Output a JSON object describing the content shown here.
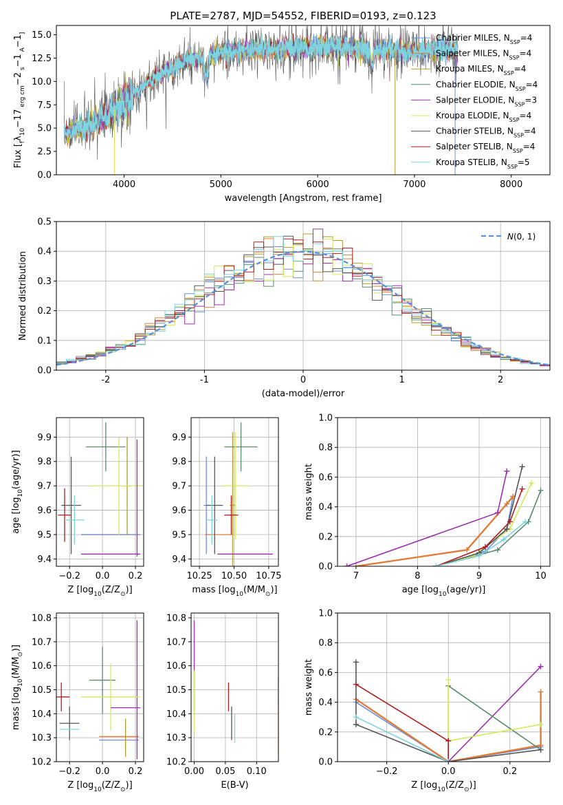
{
  "figure": {
    "title": "PLATE=2787, MJD=54552, FIBERID=0193, z=0.123"
  },
  "series": [
    {
      "name": "Chabrier MILES",
      "nssp": "4",
      "color": "#6a8fd8"
    },
    {
      "name": "Salpeter MILES",
      "nssp": "4",
      "color": "#e07b39"
    },
    {
      "name": "Kroupa MILES",
      "nssp": "4",
      "color": "#b59a2b"
    },
    {
      "name": "Chabrier ELODIE",
      "nssp": "4",
      "color": "#5a8a68"
    },
    {
      "name": "Salpeter ELODIE",
      "nssp": "3",
      "color": "#9b2fae"
    },
    {
      "name": "Kroupa ELODIE",
      "nssp": "4",
      "color": "#d4e85a"
    },
    {
      "name": "Chabrier STELIB",
      "nssp": "4",
      "color": "#555555"
    },
    {
      "name": "Salpeter STELIB",
      "nssp": "4",
      "color": "#b01c1c"
    },
    {
      "name": "Kroupa STELIB",
      "nssp": "5",
      "color": "#7ed3de"
    }
  ],
  "chart_data": [
    {
      "id": "spectrum",
      "type": "line",
      "xlabel": "wavelength [Angstrom, rest frame]",
      "ylabel_parts": [
        "Flux [",
        "f",
        "λ",
        "10",
        "−17",
        " erg cm",
        "−2",
        " s",
        "−1",
        " A",
        "−1",
        "]"
      ],
      "xlim": [
        3300,
        8400
      ],
      "ylim": [
        0,
        16
      ],
      "xticks": [
        4000,
        5000,
        6000,
        7000,
        8000
      ],
      "yticks": [
        0.0,
        2.5,
        5.0,
        7.5,
        10.0,
        12.5,
        15.0
      ],
      "continuum": {
        "x": [
          3400,
          3600,
          3800,
          4000,
          4200,
          4400,
          4600,
          4800,
          5000,
          5200,
          5400,
          5600,
          5800,
          6000,
          6200,
          6400,
          6600,
          6800,
          7000,
          7200,
          7400
        ],
        "y": [
          4.6,
          5.0,
          6.2,
          7.8,
          9.5,
          11.0,
          12.0,
          12.6,
          13.0,
          13.3,
          13.4,
          13.5,
          13.6,
          13.7,
          13.6,
          13.5,
          13.4,
          13.3,
          13.2,
          13.3,
          13.4
        ]
      },
      "legend_position": "upper right"
    },
    {
      "id": "residuals",
      "type": "line",
      "xlabel": "(data-model)/error",
      "ylabel": "Normed distribution",
      "xlim": [
        -2.5,
        2.5
      ],
      "ylim": [
        0,
        0.5
      ],
      "xticks": [
        -2,
        -1,
        0,
        1,
        2
      ],
      "yticks": [
        0.0,
        0.1,
        0.2,
        0.3,
        0.4,
        0.5
      ],
      "bin_edges_start": -2.5,
      "bin_width": 0.1,
      "nbins": 50,
      "reference_label": "(0, 1)",
      "reference_color": "#5b8fd6",
      "legend_position": "upper right"
    },
    {
      "id": "age-vs-Z",
      "type": "scatter",
      "xlabel_parts": [
        "Z [log",
        "10",
        "(Z/Z",
        "⊙",
        ")]"
      ],
      "ylabel_parts": [
        "age  [log",
        "10",
        "(age/yr)]"
      ],
      "xlim": [
        -0.28,
        0.25
      ],
      "ylim": [
        9.37,
        9.98
      ],
      "xticks": [
        -0.2,
        0.0,
        0.2
      ],
      "xtick_labels": [
        "−0.2",
        "0.0",
        "0.2"
      ],
      "yticks": [
        9.4,
        9.5,
        9.6,
        9.7,
        9.8,
        9.9
      ],
      "points": [
        {
          "x": 0.05,
          "y": 9.5,
          "xerr": 0.18,
          "yerr": 0.0,
          "s": 1
        },
        {
          "x": 0.05,
          "y": 9.5,
          "xerr": 0.18,
          "yerr": 0.0,
          "s": 0
        },
        {
          "x": 0.15,
          "y": 9.7,
          "xerr": 0.02,
          "yerr": 0.2,
          "s": 2
        },
        {
          "x": 0.02,
          "y": 9.86,
          "xerr": 0.12,
          "yerr": 0.1,
          "s": 3
        },
        {
          "x": 0.05,
          "y": 9.42,
          "xerr": 0.18,
          "yerr": 0.0,
          "s": 4
        },
        {
          "x": 0.1,
          "y": 9.7,
          "xerr": 0.18,
          "yerr": 0.2,
          "s": 5
        },
        {
          "x": -0.19,
          "y": 9.62,
          "xerr": 0.06,
          "yerr": 0.2,
          "s": 6
        },
        {
          "x": -0.23,
          "y": 9.58,
          "xerr": 0.04,
          "yerr": 0.11,
          "s": 7
        },
        {
          "x": -0.17,
          "y": 9.56,
          "xerr": 0.06,
          "yerr": 0.1,
          "s": 8
        },
        {
          "x": 0.21,
          "y": 9.65,
          "xerr": 0.0,
          "yerr": 0.24,
          "s": 4
        }
      ]
    },
    {
      "id": "age-vs-mass",
      "type": "scatter",
      "xlabel_parts": [
        "mass [log",
        "10",
        "(M/M",
        "⊙",
        ")]"
      ],
      "ylabel": "",
      "xlim": [
        10.19,
        10.82
      ],
      "ylim": [
        9.37,
        9.98
      ],
      "xticks": [
        10.25,
        10.5,
        10.75
      ],
      "xtick_labels": [
        "10.25",
        "10.50",
        "10.75"
      ],
      "yticks": [
        9.4,
        9.5,
        9.6,
        9.7,
        9.8,
        9.9
      ],
      "points": [
        {
          "x": 10.3,
          "y": 9.62,
          "xerr": 0.02,
          "yerr": 0.2,
          "s": 0
        },
        {
          "x": 10.39,
          "y": 9.5,
          "xerr": 0.1,
          "yerr": 0.0,
          "s": 1
        },
        {
          "x": 10.49,
          "y": 9.62,
          "xerr": 0.02,
          "yerr": 0.3,
          "s": 2
        },
        {
          "x": 10.55,
          "y": 9.86,
          "xerr": 0.12,
          "yerr": 0.1,
          "s": 3
        },
        {
          "x": 10.58,
          "y": 9.42,
          "xerr": 0.2,
          "yerr": 0.0,
          "s": 4
        },
        {
          "x": 10.51,
          "y": 9.7,
          "xerr": 0.1,
          "yerr": 0.22,
          "s": 5
        },
        {
          "x": 10.36,
          "y": 9.62,
          "xerr": 0.06,
          "yerr": 0.2,
          "s": 6
        },
        {
          "x": 10.48,
          "y": 9.58,
          "xerr": 0.05,
          "yerr": 0.08,
          "s": 7
        },
        {
          "x": 10.34,
          "y": 9.56,
          "xerr": 0.04,
          "yerr": 0.1,
          "s": 8
        }
      ]
    },
    {
      "id": "weight-vs-age",
      "type": "line",
      "xlabel_parts": [
        "age  [log",
        "10",
        "(age/yr)]"
      ],
      "ylabel": "mass weight",
      "xlim": [
        6.7,
        10.15
      ],
      "ylim": [
        0,
        1.0
      ],
      "xticks": [
        7,
        8,
        9,
        10
      ],
      "yticks": [
        0.0,
        0.2,
        0.4,
        0.6,
        0.8,
        1.0
      ],
      "lines": [
        {
          "s": 0,
          "x": [
            8.3,
            9.1,
            9.45,
            9.55
          ],
          "y": [
            0.0,
            0.1,
            0.25,
            0.47
          ]
        },
        {
          "s": 1,
          "x": [
            7.0,
            8.8,
            9.45,
            9.55
          ],
          "y": [
            0.0,
            0.11,
            0.42,
            0.47
          ]
        },
        {
          "s": 4,
          "x": [
            6.85,
            9.3,
            9.45
          ],
          "y": [
            0.0,
            0.36,
            0.64
          ]
        },
        {
          "s": 3,
          "x": [
            8.3,
            9.3,
            9.8,
            10.0
          ],
          "y": [
            0.0,
            0.11,
            0.3,
            0.51
          ]
        },
        {
          "s": 5,
          "x": [
            8.3,
            8.9,
            9.5,
            9.85
          ],
          "y": [
            0.0,
            0.07,
            0.25,
            0.56
          ]
        },
        {
          "s": 6,
          "x": [
            8.3,
            9.0,
            9.45,
            9.7
          ],
          "y": [
            0.0,
            0.09,
            0.25,
            0.67
          ]
        },
        {
          "s": 7,
          "x": [
            8.3,
            9.1,
            9.5,
            9.7
          ],
          "y": [
            0.0,
            0.13,
            0.3,
            0.52
          ]
        },
        {
          "s": 8,
          "x": [
            8.3,
            9.0,
            9.4,
            9.75
          ],
          "y": [
            0.0,
            0.07,
            0.18,
            0.3
          ]
        }
      ]
    },
    {
      "id": "mass-vs-Z",
      "type": "scatter",
      "xlabel_parts": [
        "Z [log",
        "10",
        "(Z/Z",
        "⊙",
        ")]"
      ],
      "ylabel_parts": [
        "mass [log",
        "10",
        "(M/M",
        "⊙",
        ")]"
      ],
      "xlim": [
        -0.28,
        0.25
      ],
      "ylim": [
        10.2,
        10.82
      ],
      "xticks": [
        -0.2,
        0.0,
        0.2
      ],
      "xtick_labels": [
        "−0.2",
        "0.0",
        "0.2"
      ],
      "yticks": [
        10.2,
        10.3,
        10.4,
        10.5,
        10.6,
        10.7,
        10.8
      ],
      "points": [
        {
          "x": 0.1,
          "y": 10.29,
          "xerr": 0.12,
          "yerr": 0.0,
          "s": 0
        },
        {
          "x": 0.1,
          "y": 10.305,
          "xerr": 0.12,
          "yerr": 0.0,
          "s": 1
        },
        {
          "x": 0.14,
          "y": 10.3,
          "xerr": 0.0,
          "yerr": 0.08,
          "s": 2
        },
        {
          "x": 0.0,
          "y": 10.54,
          "xerr": 0.08,
          "yerr": 0.14,
          "s": 3
        },
        {
          "x": 0.21,
          "y": 10.5,
          "xerr": 0.0,
          "yerr": 0.29,
          "s": 4
        },
        {
          "x": 0.05,
          "y": 10.47,
          "xerr": 0.18,
          "yerr": 0.14,
          "s": 5
        },
        {
          "x": -0.2,
          "y": 10.36,
          "xerr": 0.06,
          "yerr": 0.07,
          "s": 6
        },
        {
          "x": -0.25,
          "y": 10.47,
          "xerr": 0.05,
          "yerr": 0.06,
          "s": 7
        },
        {
          "x": -0.2,
          "y": 10.335,
          "xerr": 0.06,
          "yerr": 0.0,
          "s": 8
        },
        {
          "x": 0.14,
          "y": 10.425,
          "xerr": 0.09,
          "yerr": 0.0,
          "s": 4
        }
      ]
    },
    {
      "id": "mass-vs-EBV",
      "type": "scatter",
      "xlabel": "E(B-V)",
      "ylabel": "",
      "xlim": [
        -0.005,
        0.135
      ],
      "ylim": [
        10.2,
        10.82
      ],
      "xticks": [
        0.0,
        0.05,
        0.1
      ],
      "xtick_labels": [
        "0.00",
        "0.05",
        "0.10"
      ],
      "yticks": [
        10.2,
        10.3,
        10.4,
        10.5,
        10.6,
        10.7,
        10.8
      ],
      "points": [
        {
          "x": 0.0,
          "y": 10.6,
          "xerr": 0,
          "yerr": 0.19,
          "s": 4
        },
        {
          "x": 0.0,
          "y": 10.45,
          "xerr": 0,
          "yerr": 0.13,
          "s": 5
        },
        {
          "x": 0.055,
          "y": 10.47,
          "xerr": 0,
          "yerr": 0.06,
          "s": 7
        },
        {
          "x": 0.06,
          "y": 10.36,
          "xerr": 0,
          "yerr": 0.07,
          "s": 6
        },
        {
          "x": 0.065,
          "y": 10.34,
          "xerr": 0,
          "yerr": 0.06,
          "s": 8
        },
        {
          "x": 0.135,
          "y": 10.33,
          "xerr": 0,
          "yerr": 0.1,
          "s": 1
        },
        {
          "x": 0.135,
          "y": 10.49,
          "xerr": 0,
          "yerr": 0.06,
          "s": 4
        }
      ]
    },
    {
      "id": "weight-vs-Z",
      "type": "line",
      "xlabel_parts": [
        "Z [log",
        "10",
        "(Z/Z",
        "⊙",
        ")]"
      ],
      "ylabel": "mass weight",
      "xlim": [
        -0.36,
        0.33
      ],
      "ylim": [
        0,
        1.0
      ],
      "xticks": [
        -0.2,
        0.0,
        0.2
      ],
      "xtick_labels": [
        "−0.2",
        "0.0",
        "0.2"
      ],
      "yticks": [
        0.0,
        0.2,
        0.4,
        0.6,
        0.8,
        1.0
      ],
      "lines": [
        {
          "s": 0,
          "x": [
            -0.3,
            0.0,
            0.3
          ],
          "y": [
            0.4,
            0.0,
            0.1
          ]
        },
        {
          "s": 1,
          "x": [
            -0.3,
            0.0,
            0.3,
            0.3
          ],
          "y": [
            0.42,
            0.0,
            0.11,
            0.47
          ]
        },
        {
          "s": 4,
          "x": [
            0.0,
            0.3
          ],
          "y": [
            0.0,
            0.64
          ]
        },
        {
          "s": 3,
          "x": [
            0.0,
            0.0,
            0.3
          ],
          "y": [
            0.0,
            0.51,
            0.08
          ]
        },
        {
          "s": 5,
          "x": [
            0.0,
            0.0,
            0.3
          ],
          "y": [
            0.55,
            0.14,
            0.25
          ]
        },
        {
          "s": 6,
          "x": [
            -0.3,
            -0.3,
            0.0,
            0.3
          ],
          "y": [
            0.67,
            0.25,
            0.0,
            0.08
          ]
        },
        {
          "s": 7,
          "x": [
            -0.3,
            0.0,
            0.0
          ],
          "y": [
            0.52,
            0.14,
            0.0
          ]
        },
        {
          "s": 8,
          "x": [
            -0.3,
            0.0
          ],
          "y": [
            0.3,
            0.0
          ]
        }
      ]
    }
  ]
}
